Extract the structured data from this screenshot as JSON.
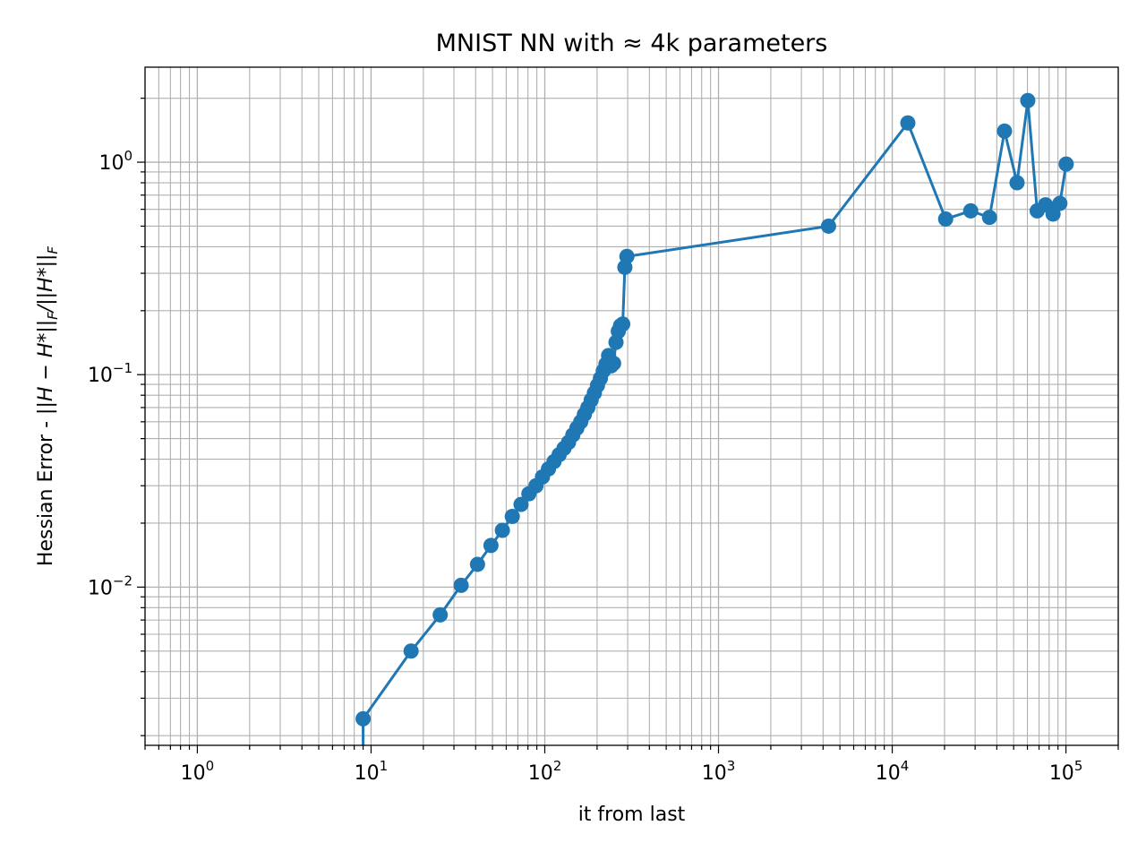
{
  "chart_data": {
    "type": "line",
    "title": "MNIST NN with ≈ 4k parameters",
    "xlabel": "it from last",
    "ylabel": "Hessian Error - ||H − H*||F/||H*||F",
    "ylabel_parts": {
      "prefix": "Hessian Error - ",
      "lhs": "||H − H*||",
      "sub1": "F",
      "mid": "/||H*||",
      "sub2": "F"
    },
    "xscale": "log",
    "yscale": "log",
    "xlim": [
      0.5,
      200000
    ],
    "ylim": [
      0.0018,
      2.8
    ],
    "grid": true,
    "grid_which": "both",
    "series_color": "#1f77b4",
    "marker": "circle",
    "x_ticks": [
      {
        "value": 1,
        "base": "10",
        "exp": "0"
      },
      {
        "value": 10,
        "base": "10",
        "exp": "1"
      },
      {
        "value": 100,
        "base": "10",
        "exp": "2"
      },
      {
        "value": 1000,
        "base": "10",
        "exp": "3"
      },
      {
        "value": 10000,
        "base": "10",
        "exp": "4"
      },
      {
        "value": 100000,
        "base": "10",
        "exp": "5"
      }
    ],
    "y_ticks": [
      {
        "value": 0.01,
        "base": "10",
        "exp": "−2"
      },
      {
        "value": 0.1,
        "base": "10",
        "exp": "−1"
      },
      {
        "value": 1,
        "base": "10",
        "exp": "0"
      }
    ],
    "series": [
      {
        "x": [
          9,
          9,
          17,
          25,
          33,
          41,
          49,
          57,
          65,
          73,
          81,
          89,
          97,
          105,
          113,
          121,
          129,
          137,
          145,
          153,
          161,
          169,
          177,
          185,
          193,
          201,
          209,
          217,
          225,
          233,
          241,
          249,
          257,
          265,
          273,
          281,
          289,
          297,
          4300,
          12300,
          20300,
          28300,
          36300,
          44300,
          52300,
          60300,
          68300,
          76300,
          84300,
          92300,
          100300
        ],
        "y": [
          0.0012,
          0.0024,
          0.005,
          0.0074,
          0.0102,
          0.0128,
          0.0157,
          0.0185,
          0.0215,
          0.0245,
          0.0275,
          0.03,
          0.033,
          0.036,
          0.039,
          0.042,
          0.045,
          0.048,
          0.052,
          0.056,
          0.06,
          0.065,
          0.07,
          0.076,
          0.082,
          0.089,
          0.096,
          0.104,
          0.112,
          0.123,
          0.11,
          0.113,
          0.142,
          0.16,
          0.17,
          0.173,
          0.32,
          0.36,
          0.5,
          1.53,
          0.54,
          0.59,
          0.55,
          1.4,
          0.8,
          1.95,
          0.59,
          0.63,
          0.57,
          0.64,
          0.98
        ]
      }
    ]
  }
}
